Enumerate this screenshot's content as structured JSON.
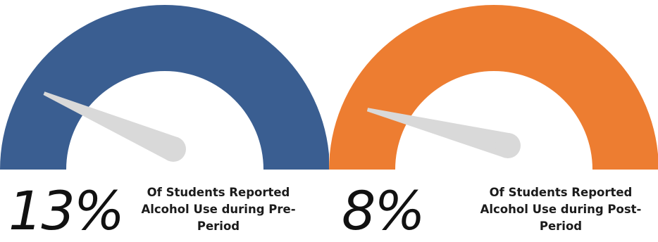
{
  "chart_data": [
    {
      "type": "gauge",
      "value": 13,
      "unit": "%",
      "value_label": "13%",
      "caption_lines": [
        "Of Students Reported",
        "Alcohol Use during Pre-",
        "Period"
      ],
      "range": [
        0,
        100
      ],
      "color": "#3a5e91",
      "needle_color": "#d9d9d9"
    },
    {
      "type": "gauge",
      "value": 8,
      "unit": "%",
      "value_label": "8%",
      "caption_lines": [
        "Of Students Reported",
        "Alcohol Use during Post-",
        "Period"
      ],
      "range": [
        0,
        100
      ],
      "color": "#ed7d31",
      "needle_color": "#d9d9d9"
    }
  ]
}
